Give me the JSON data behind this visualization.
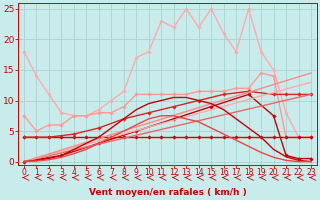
{
  "xlabel": "Vent moyen/en rafales ( km/h )",
  "xlim": [
    -0.5,
    23.5
  ],
  "ylim": [
    -0.5,
    26
  ],
  "yticks": [
    0,
    5,
    10,
    15,
    20,
    25
  ],
  "xticks": [
    0,
    1,
    2,
    3,
    4,
    5,
    6,
    7,
    8,
    9,
    10,
    11,
    12,
    13,
    14,
    15,
    16,
    17,
    18,
    19,
    20,
    21,
    22,
    23
  ],
  "bg_color": "#c8ecec",
  "grid_color": "#a8d4d4",
  "lines": [
    {
      "x": [
        0,
        1,
        2,
        3,
        4,
        5,
        6,
        7,
        8,
        9,
        10,
        11,
        12,
        13,
        14,
        15,
        16,
        17,
        18,
        19,
        20,
        21,
        22,
        23
      ],
      "y": [
        18,
        14,
        11,
        8,
        7.5,
        7.5,
        8.5,
        10,
        11.5,
        17,
        18,
        23,
        22,
        25,
        22,
        25,
        21,
        18,
        25,
        18,
        15,
        8,
        4,
        4
      ],
      "color": "#ffaaaa",
      "lw": 1.0,
      "marker": "D",
      "ms": 1.8
    },
    {
      "x": [
        0,
        1,
        2,
        3,
        4,
        5,
        6,
        7,
        8,
        9,
        10,
        11,
        12,
        13,
        14,
        15,
        16,
        17,
        18,
        19,
        20,
        21,
        22,
        23
      ],
      "y": [
        7.5,
        5,
        6,
        6,
        7.5,
        7.5,
        8,
        8,
        9,
        11,
        11,
        11,
        11,
        11,
        11.5,
        11.5,
        11.5,
        12,
        12,
        14.5,
        14,
        4,
        4,
        4
      ],
      "color": "#ff9999",
      "lw": 1.0,
      "marker": "D",
      "ms": 1.8
    },
    {
      "x": [
        0,
        1,
        2,
        3,
        4,
        5,
        6,
        7,
        8,
        9,
        10,
        11,
        12,
        13,
        14,
        15,
        16,
        17,
        18,
        19,
        20,
        21,
        22,
        23
      ],
      "y": [
        4,
        4,
        4,
        4,
        4,
        4,
        4,
        4,
        4,
        4,
        4,
        4,
        4,
        4,
        4,
        4,
        4,
        4,
        4,
        4,
        4,
        4,
        4,
        4
      ],
      "color": "#cc0000",
      "lw": 1.0,
      "marker": "D",
      "ms": 1.8
    },
    {
      "x": [
        0,
        3,
        6,
        9,
        12,
        15,
        18,
        20,
        21,
        22,
        23
      ],
      "y": [
        0,
        1,
        3,
        5,
        7,
        9,
        11,
        7.5,
        1,
        0.5,
        0.5
      ],
      "color": "#cc0000",
      "lw": 1.0,
      "marker": "D",
      "ms": 1.8
    },
    {
      "x": [
        0,
        2,
        4,
        6,
        8,
        10,
        12,
        14,
        16,
        18,
        20,
        21,
        22,
        23
      ],
      "y": [
        4,
        4,
        4.5,
        5.5,
        7,
        8,
        9,
        10,
        11,
        11.5,
        11,
        11,
        11,
        11
      ],
      "color": "#dd2222",
      "lw": 1.0,
      "marker": "D",
      "ms": 1.8
    },
    {
      "x": [
        0,
        23
      ],
      "y": [
        0,
        11
      ],
      "color": "#ee6666",
      "lw": 1.0,
      "marker": null,
      "ms": 0
    },
    {
      "x": [
        0,
        23
      ],
      "y": [
        0,
        13
      ],
      "color": "#ffaaaa",
      "lw": 1.0,
      "marker": null,
      "ms": 0
    },
    {
      "x": [
        0,
        23
      ],
      "y": [
        0,
        14.5
      ],
      "color": "#ff8888",
      "lw": 1.0,
      "marker": null,
      "ms": 0
    },
    {
      "x": [
        0,
        1,
        2,
        3,
        4,
        5,
        6,
        7,
        8,
        9,
        10,
        11,
        12,
        13,
        14,
        15,
        16,
        17,
        18,
        19,
        20,
        21,
        22,
        23
      ],
      "y": [
        0,
        0.2,
        0.5,
        1,
        2,
        3,
        4,
        5.5,
        7,
        8.5,
        9.5,
        10,
        10.5,
        10.5,
        10,
        9.5,
        8.5,
        7,
        5.5,
        4,
        2,
        0.8,
        0.2,
        0
      ],
      "color": "#cc0000",
      "lw": 1.0,
      "marker": null,
      "ms": 0
    },
    {
      "x": [
        0,
        1,
        2,
        3,
        4,
        5,
        6,
        7,
        8,
        9,
        10,
        11,
        12,
        13,
        14,
        15,
        16,
        17,
        18,
        19,
        20,
        21,
        22,
        23
      ],
      "y": [
        0,
        0.1,
        0.3,
        0.7,
        1.3,
        2,
        3,
        4,
        5,
        6,
        7,
        7.5,
        7.5,
        7,
        6.5,
        5.5,
        4.5,
        3.5,
        2.5,
        1.5,
        0.7,
        0.2,
        0,
        0
      ],
      "color": "#ee4444",
      "lw": 1.0,
      "marker": null,
      "ms": 0
    }
  ],
  "arrow_color": "#cc0000",
  "xlabel_fontsize": 6.5,
  "xlabel_fontweight": "bold",
  "tick_fontsize": 5.5,
  "ytick_fontsize": 6.5
}
